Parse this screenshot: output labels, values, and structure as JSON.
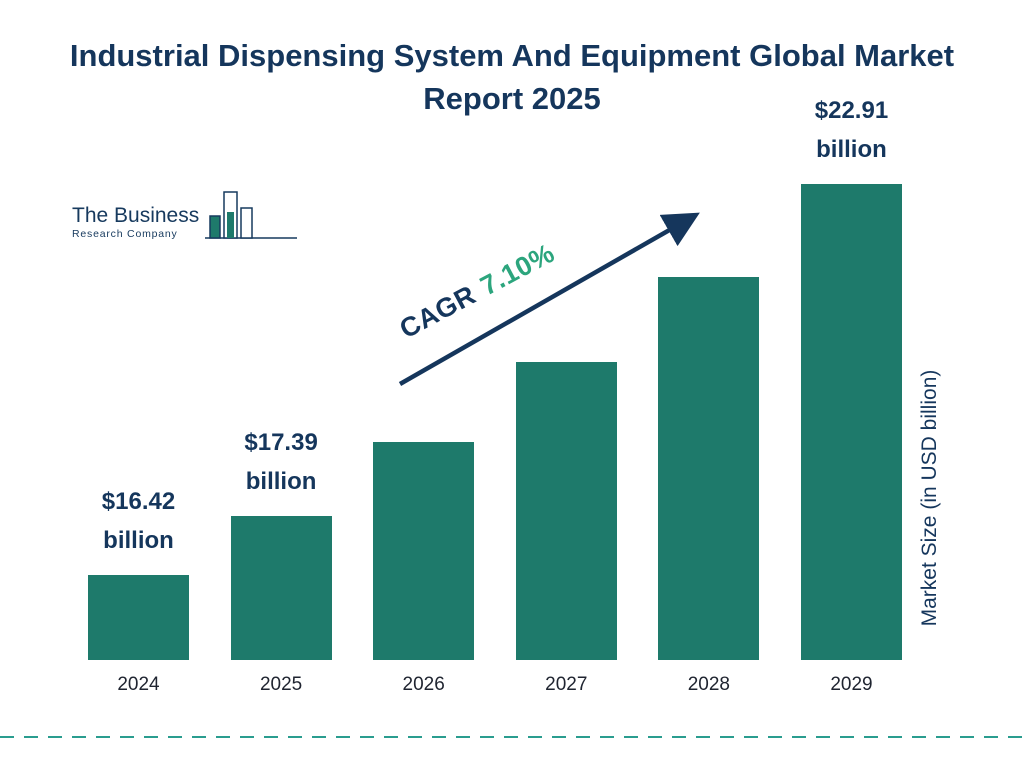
{
  "title": "Industrial Dispensing System And Equipment Global Market Report 2025",
  "logo": {
    "name_line1": "The Business",
    "name_line2": "Research Company"
  },
  "annotation": {
    "cagr_label": "CAGR",
    "cagr_value": "7.10%"
  },
  "axis": {
    "y_label": "Market Size (in USD billion)"
  },
  "colors": {
    "bar": "#1e7a6b",
    "navy": "#15365c",
    "green": "#2ca57d",
    "dash": "#2a9d8f"
  },
  "chart_data": {
    "type": "bar",
    "title": "Industrial Dispensing System And Equipment Global Market Report 2025",
    "categories": [
      "2024",
      "2025",
      "2026",
      "2027",
      "2028",
      "2029"
    ],
    "values": [
      16.42,
      17.39,
      18.62,
      19.95,
      21.37,
      22.91
    ],
    "value_labels": [
      {
        "amount": "$16.42",
        "unit": "billion"
      },
      {
        "amount": "$17.39",
        "unit": "billion"
      },
      null,
      null,
      null,
      {
        "amount": "$22.91",
        "unit": "billion"
      }
    ],
    "cagr": "7.10%",
    "xlabel": "",
    "ylabel": "Market Size (in USD billion)",
    "ylim": [
      15,
      22.91
    ],
    "grid": false,
    "legend": false
  }
}
